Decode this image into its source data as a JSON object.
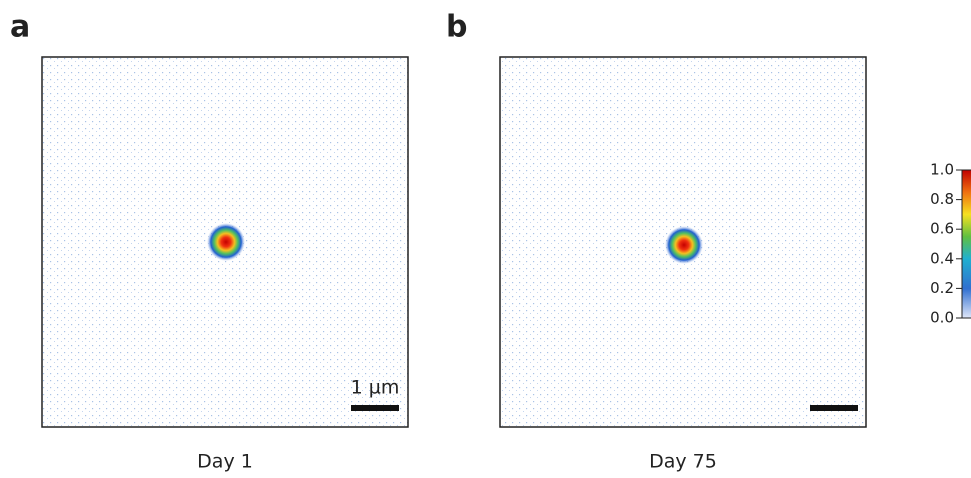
{
  "panels": [
    {
      "label": "a",
      "caption": "Day 1",
      "scale_bar": "1 µm"
    },
    {
      "label": "b",
      "caption": "Day 75"
    }
  ],
  "colorbar": {
    "ticks": [
      {
        "value": 0,
        "label": "0.0"
      },
      {
        "value": 0.2,
        "label": "0.2"
      },
      {
        "value": 0.4,
        "label": "0.4"
      },
      {
        "value": 0.6,
        "label": "0.6"
      },
      {
        "value": 0.8,
        "label": "0.8"
      },
      {
        "value": 1,
        "label": "1.0"
      }
    ]
  }
}
